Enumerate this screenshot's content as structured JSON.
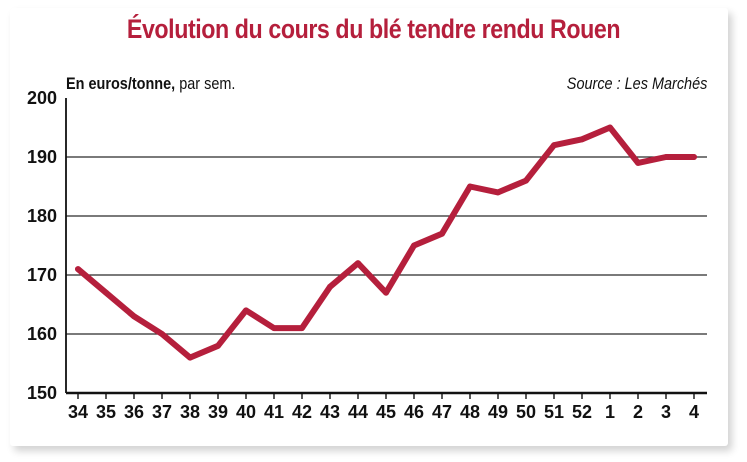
{
  "chart_data": {
    "type": "line",
    "title": "Évolution du cours du blé tendre rendu Rouen",
    "unit_bold": "En euros/tonne,",
    "unit_rest": " par sem.",
    "source": "Source : Les Marchés",
    "categories": [
      "34",
      "35",
      "36",
      "37",
      "38",
      "39",
      "40",
      "41",
      "42",
      "43",
      "44",
      "45",
      "46",
      "47",
      "48",
      "49",
      "50",
      "51",
      "52",
      "1",
      "2",
      "3",
      "4"
    ],
    "series": [
      {
        "values": [
          171,
          167,
          163,
          160,
          156,
          158,
          164,
          161,
          161,
          168,
          172,
          167,
          175,
          177,
          185,
          184,
          186,
          192,
          193,
          195,
          189,
          190,
          190
        ]
      }
    ],
    "y_ticks": [
      150,
      160,
      170,
      180,
      190,
      200
    ],
    "ylim": [
      150,
      200
    ],
    "grid": true,
    "line_color": "#b51f3c"
  }
}
